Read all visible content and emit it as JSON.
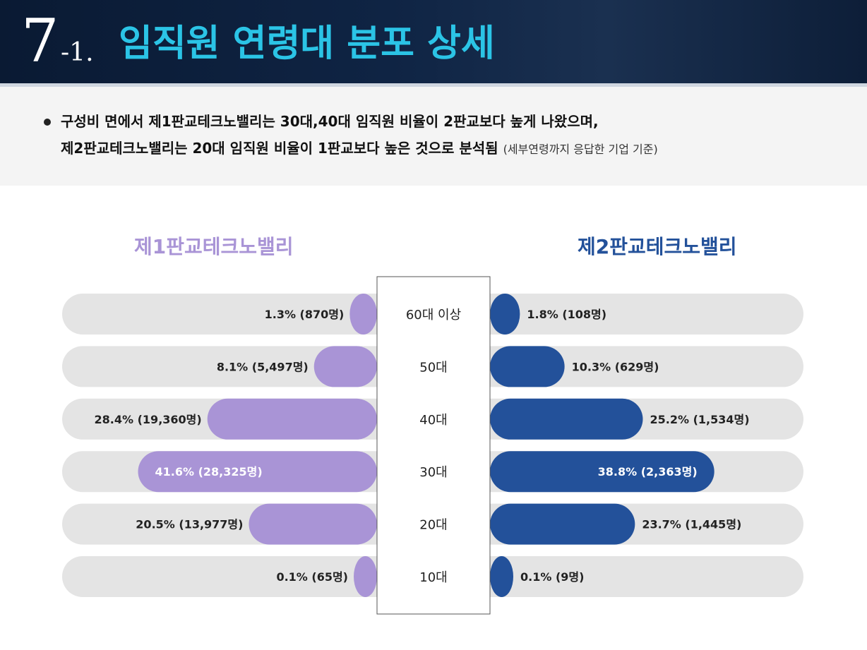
{
  "header": {
    "number": "7",
    "sub": "-1.",
    "title": "임직원 연령대 분포 상세"
  },
  "summary": {
    "line1": "구성비 면에서 제1판교테크노밸리는 30대,40대 임직원 비율이 2판교보다 높게 나왔으며,",
    "line2": "제2판교테크노밸리는 20대 임직원 비율이 1판교보다 높은 것으로 분석됨",
    "note": "(세부연령까지 응답한 기업 기준)"
  },
  "colors": {
    "left": "#a994d6",
    "right": "#23519a",
    "track": "#e4e4e4"
  },
  "chart_data": {
    "type": "bar",
    "orientation": "diverging-horizontal",
    "categories": [
      "60대 이상",
      "50대",
      "40대",
      "30대",
      "20대",
      "10대"
    ],
    "series": [
      {
        "name": "제1판교테크노밸리",
        "side": "left",
        "values": [
          1.3,
          8.1,
          28.4,
          41.6,
          20.5,
          0.1
        ],
        "labels": [
          "1.3% (870명)",
          "8.1% (5,497명)",
          "28.4% (19,360명)",
          "41.6% (28,325명)",
          "20.5% (13,977명)",
          "0.1% (65명)"
        ]
      },
      {
        "name": "제2판교테크노밸리",
        "side": "right",
        "values": [
          1.8,
          10.3,
          25.2,
          38.8,
          23.7,
          0.1
        ],
        "labels": [
          "1.8% (108명)",
          "10.3% (629명)",
          "25.2% (1,534명)",
          "38.8% (2,363명)",
          "23.7% (1,445명)",
          "0.1% (9명)"
        ]
      }
    ]
  }
}
